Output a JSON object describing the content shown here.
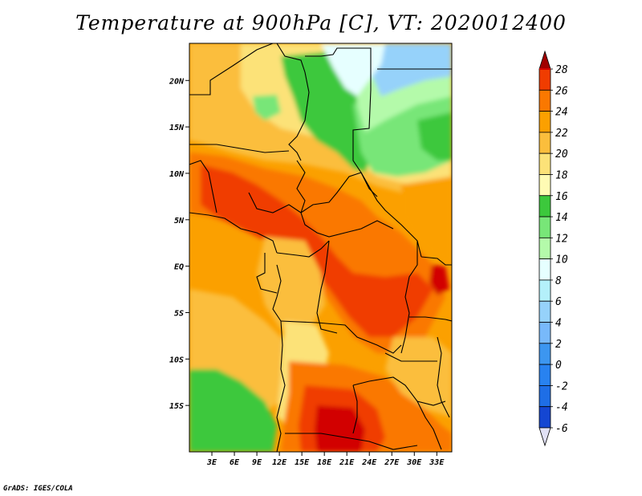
{
  "title": "Temperature at 900hPa [C], VT: 2020012400",
  "footer": "GrADS: IGES/COLA",
  "map": {
    "variable": "Temperature",
    "level": "900hPa",
    "units": "C",
    "valid_time": "2020012400",
    "lon_range": [
      0,
      35
    ],
    "lat_range": [
      -20,
      24
    ],
    "lat_ticks": [
      {
        "value": 20,
        "label": "20N"
      },
      {
        "value": 15,
        "label": "15N"
      },
      {
        "value": 10,
        "label": "10N"
      },
      {
        "value": 5,
        "label": "5N"
      },
      {
        "value": 0,
        "label": "EQ"
      },
      {
        "value": -5,
        "label": "5S"
      },
      {
        "value": -10,
        "label": "10S"
      },
      {
        "value": -15,
        "label": "15S"
      }
    ],
    "lon_ticks": [
      {
        "value": 3,
        "label": "3E"
      },
      {
        "value": 6,
        "label": "6E"
      },
      {
        "value": 9,
        "label": "9E"
      },
      {
        "value": 12,
        "label": "12E"
      },
      {
        "value": 15,
        "label": "15E"
      },
      {
        "value": 18,
        "label": "18E"
      },
      {
        "value": 21,
        "label": "21E"
      },
      {
        "value": 24,
        "label": "24E"
      },
      {
        "value": 27,
        "label": "27E"
      },
      {
        "value": 30,
        "label": "30E"
      },
      {
        "value": 33,
        "label": "33E"
      }
    ]
  },
  "colorbar": {
    "levels": [
      {
        "label": "28",
        "color": "#d20000"
      },
      {
        "label": "26",
        "color": "#f03c00"
      },
      {
        "label": "24",
        "color": "#fa7800"
      },
      {
        "label": "22",
        "color": "#fba000"
      },
      {
        "label": "20",
        "color": "#fbbe3c"
      },
      {
        "label": "18",
        "color": "#fce278"
      },
      {
        "label": "16",
        "color": "#fffbb4"
      },
      {
        "label": "14",
        "color": "#3cc83c"
      },
      {
        "label": "12",
        "color": "#78e678"
      },
      {
        "label": "10",
        "color": "#b4faaa"
      },
      {
        "label": "8",
        "color": "#e6ffff"
      },
      {
        "label": "6",
        "color": "#b4f0fa"
      },
      {
        "label": "4",
        "color": "#96d2fa"
      },
      {
        "label": "2",
        "color": "#78b9fa"
      },
      {
        "label": "0",
        "color": "#3c96f0"
      },
      {
        "label": "-2",
        "color": "#2882f0"
      },
      {
        "label": "-4",
        "color": "#1e6ee6"
      },
      {
        "label": "-6",
        "color": "#1446d2"
      }
    ],
    "over_color": "#a00000",
    "under_color": "#1e1e9b",
    "under_end_color": "#e1e1f5"
  },
  "colors": {
    "sahara_green": "#3cc83c",
    "pale_green": "#b4faaa",
    "light_green": "#78e678",
    "pale_blue": "#96d2fa",
    "ice": "#e6ffff",
    "pale_yellow": "#fce278",
    "light_orange": "#fbbe3c",
    "orange": "#fba000",
    "dark_orange": "#fa7800",
    "red_orange": "#f03c00",
    "red": "#d20000"
  }
}
